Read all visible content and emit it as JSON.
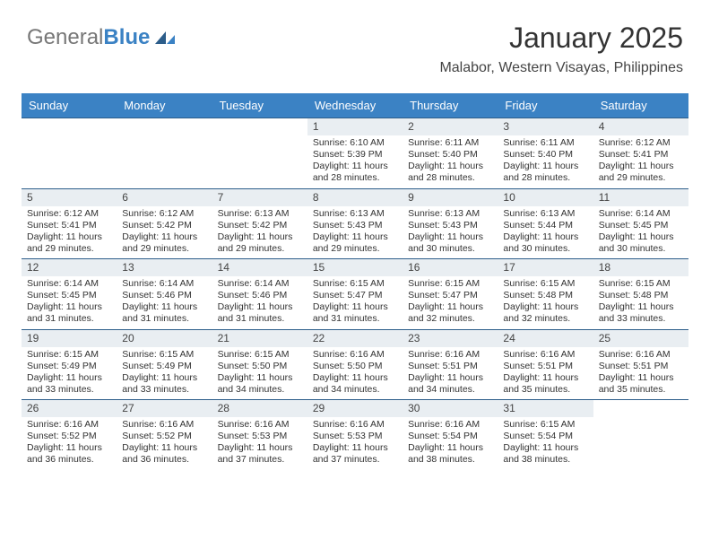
{
  "brand": {
    "word1": "General",
    "word2": "Blue"
  },
  "header": {
    "month_year": "January 2025",
    "location": "Malabor, Western Visayas, Philippines"
  },
  "colors": {
    "header_bg": "#3b82c4",
    "header_text": "#ffffff",
    "daynum_bg": "#e9eef2",
    "week_border": "#2c5d8a",
    "text": "#333333",
    "background": "#ffffff"
  },
  "typography": {
    "title_fontsize": 32,
    "subtitle_fontsize": 16,
    "header_fontsize": 13,
    "cell_fontsize": 10.5,
    "daynum_fontsize": 12,
    "font_family": "Arial"
  },
  "layout": {
    "columns": 7,
    "rows": 5,
    "cell_min_height": 74
  },
  "weekdays": [
    "Sunday",
    "Monday",
    "Tuesday",
    "Wednesday",
    "Thursday",
    "Friday",
    "Saturday"
  ],
  "weeks": [
    [
      {
        "blank": true
      },
      {
        "blank": true
      },
      {
        "blank": true
      },
      {
        "day": "1",
        "sunrise": "6:10 AM",
        "sunset": "5:39 PM",
        "daylight": "11 hours and 28 minutes."
      },
      {
        "day": "2",
        "sunrise": "6:11 AM",
        "sunset": "5:40 PM",
        "daylight": "11 hours and 28 minutes."
      },
      {
        "day": "3",
        "sunrise": "6:11 AM",
        "sunset": "5:40 PM",
        "daylight": "11 hours and 28 minutes."
      },
      {
        "day": "4",
        "sunrise": "6:12 AM",
        "sunset": "5:41 PM",
        "daylight": "11 hours and 29 minutes."
      }
    ],
    [
      {
        "day": "5",
        "sunrise": "6:12 AM",
        "sunset": "5:41 PM",
        "daylight": "11 hours and 29 minutes."
      },
      {
        "day": "6",
        "sunrise": "6:12 AM",
        "sunset": "5:42 PM",
        "daylight": "11 hours and 29 minutes."
      },
      {
        "day": "7",
        "sunrise": "6:13 AM",
        "sunset": "5:42 PM",
        "daylight": "11 hours and 29 minutes."
      },
      {
        "day": "8",
        "sunrise": "6:13 AM",
        "sunset": "5:43 PM",
        "daylight": "11 hours and 29 minutes."
      },
      {
        "day": "9",
        "sunrise": "6:13 AM",
        "sunset": "5:43 PM",
        "daylight": "11 hours and 30 minutes."
      },
      {
        "day": "10",
        "sunrise": "6:13 AM",
        "sunset": "5:44 PM",
        "daylight": "11 hours and 30 minutes."
      },
      {
        "day": "11",
        "sunrise": "6:14 AM",
        "sunset": "5:45 PM",
        "daylight": "11 hours and 30 minutes."
      }
    ],
    [
      {
        "day": "12",
        "sunrise": "6:14 AM",
        "sunset": "5:45 PM",
        "daylight": "11 hours and 31 minutes."
      },
      {
        "day": "13",
        "sunrise": "6:14 AM",
        "sunset": "5:46 PM",
        "daylight": "11 hours and 31 minutes."
      },
      {
        "day": "14",
        "sunrise": "6:14 AM",
        "sunset": "5:46 PM",
        "daylight": "11 hours and 31 minutes."
      },
      {
        "day": "15",
        "sunrise": "6:15 AM",
        "sunset": "5:47 PM",
        "daylight": "11 hours and 31 minutes."
      },
      {
        "day": "16",
        "sunrise": "6:15 AM",
        "sunset": "5:47 PM",
        "daylight": "11 hours and 32 minutes."
      },
      {
        "day": "17",
        "sunrise": "6:15 AM",
        "sunset": "5:48 PM",
        "daylight": "11 hours and 32 minutes."
      },
      {
        "day": "18",
        "sunrise": "6:15 AM",
        "sunset": "5:48 PM",
        "daylight": "11 hours and 33 minutes."
      }
    ],
    [
      {
        "day": "19",
        "sunrise": "6:15 AM",
        "sunset": "5:49 PM",
        "daylight": "11 hours and 33 minutes."
      },
      {
        "day": "20",
        "sunrise": "6:15 AM",
        "sunset": "5:49 PM",
        "daylight": "11 hours and 33 minutes."
      },
      {
        "day": "21",
        "sunrise": "6:15 AM",
        "sunset": "5:50 PM",
        "daylight": "11 hours and 34 minutes."
      },
      {
        "day": "22",
        "sunrise": "6:16 AM",
        "sunset": "5:50 PM",
        "daylight": "11 hours and 34 minutes."
      },
      {
        "day": "23",
        "sunrise": "6:16 AM",
        "sunset": "5:51 PM",
        "daylight": "11 hours and 34 minutes."
      },
      {
        "day": "24",
        "sunrise": "6:16 AM",
        "sunset": "5:51 PM",
        "daylight": "11 hours and 35 minutes."
      },
      {
        "day": "25",
        "sunrise": "6:16 AM",
        "sunset": "5:51 PM",
        "daylight": "11 hours and 35 minutes."
      }
    ],
    [
      {
        "day": "26",
        "sunrise": "6:16 AM",
        "sunset": "5:52 PM",
        "daylight": "11 hours and 36 minutes."
      },
      {
        "day": "27",
        "sunrise": "6:16 AM",
        "sunset": "5:52 PM",
        "daylight": "11 hours and 36 minutes."
      },
      {
        "day": "28",
        "sunrise": "6:16 AM",
        "sunset": "5:53 PM",
        "daylight": "11 hours and 37 minutes."
      },
      {
        "day": "29",
        "sunrise": "6:16 AM",
        "sunset": "5:53 PM",
        "daylight": "11 hours and 37 minutes."
      },
      {
        "day": "30",
        "sunrise": "6:16 AM",
        "sunset": "5:54 PM",
        "daylight": "11 hours and 38 minutes."
      },
      {
        "day": "31",
        "sunrise": "6:15 AM",
        "sunset": "5:54 PM",
        "daylight": "11 hours and 38 minutes."
      },
      {
        "blank": true
      }
    ]
  ],
  "labels": {
    "sunrise": "Sunrise:",
    "sunset": "Sunset:",
    "daylight": "Daylight:"
  }
}
